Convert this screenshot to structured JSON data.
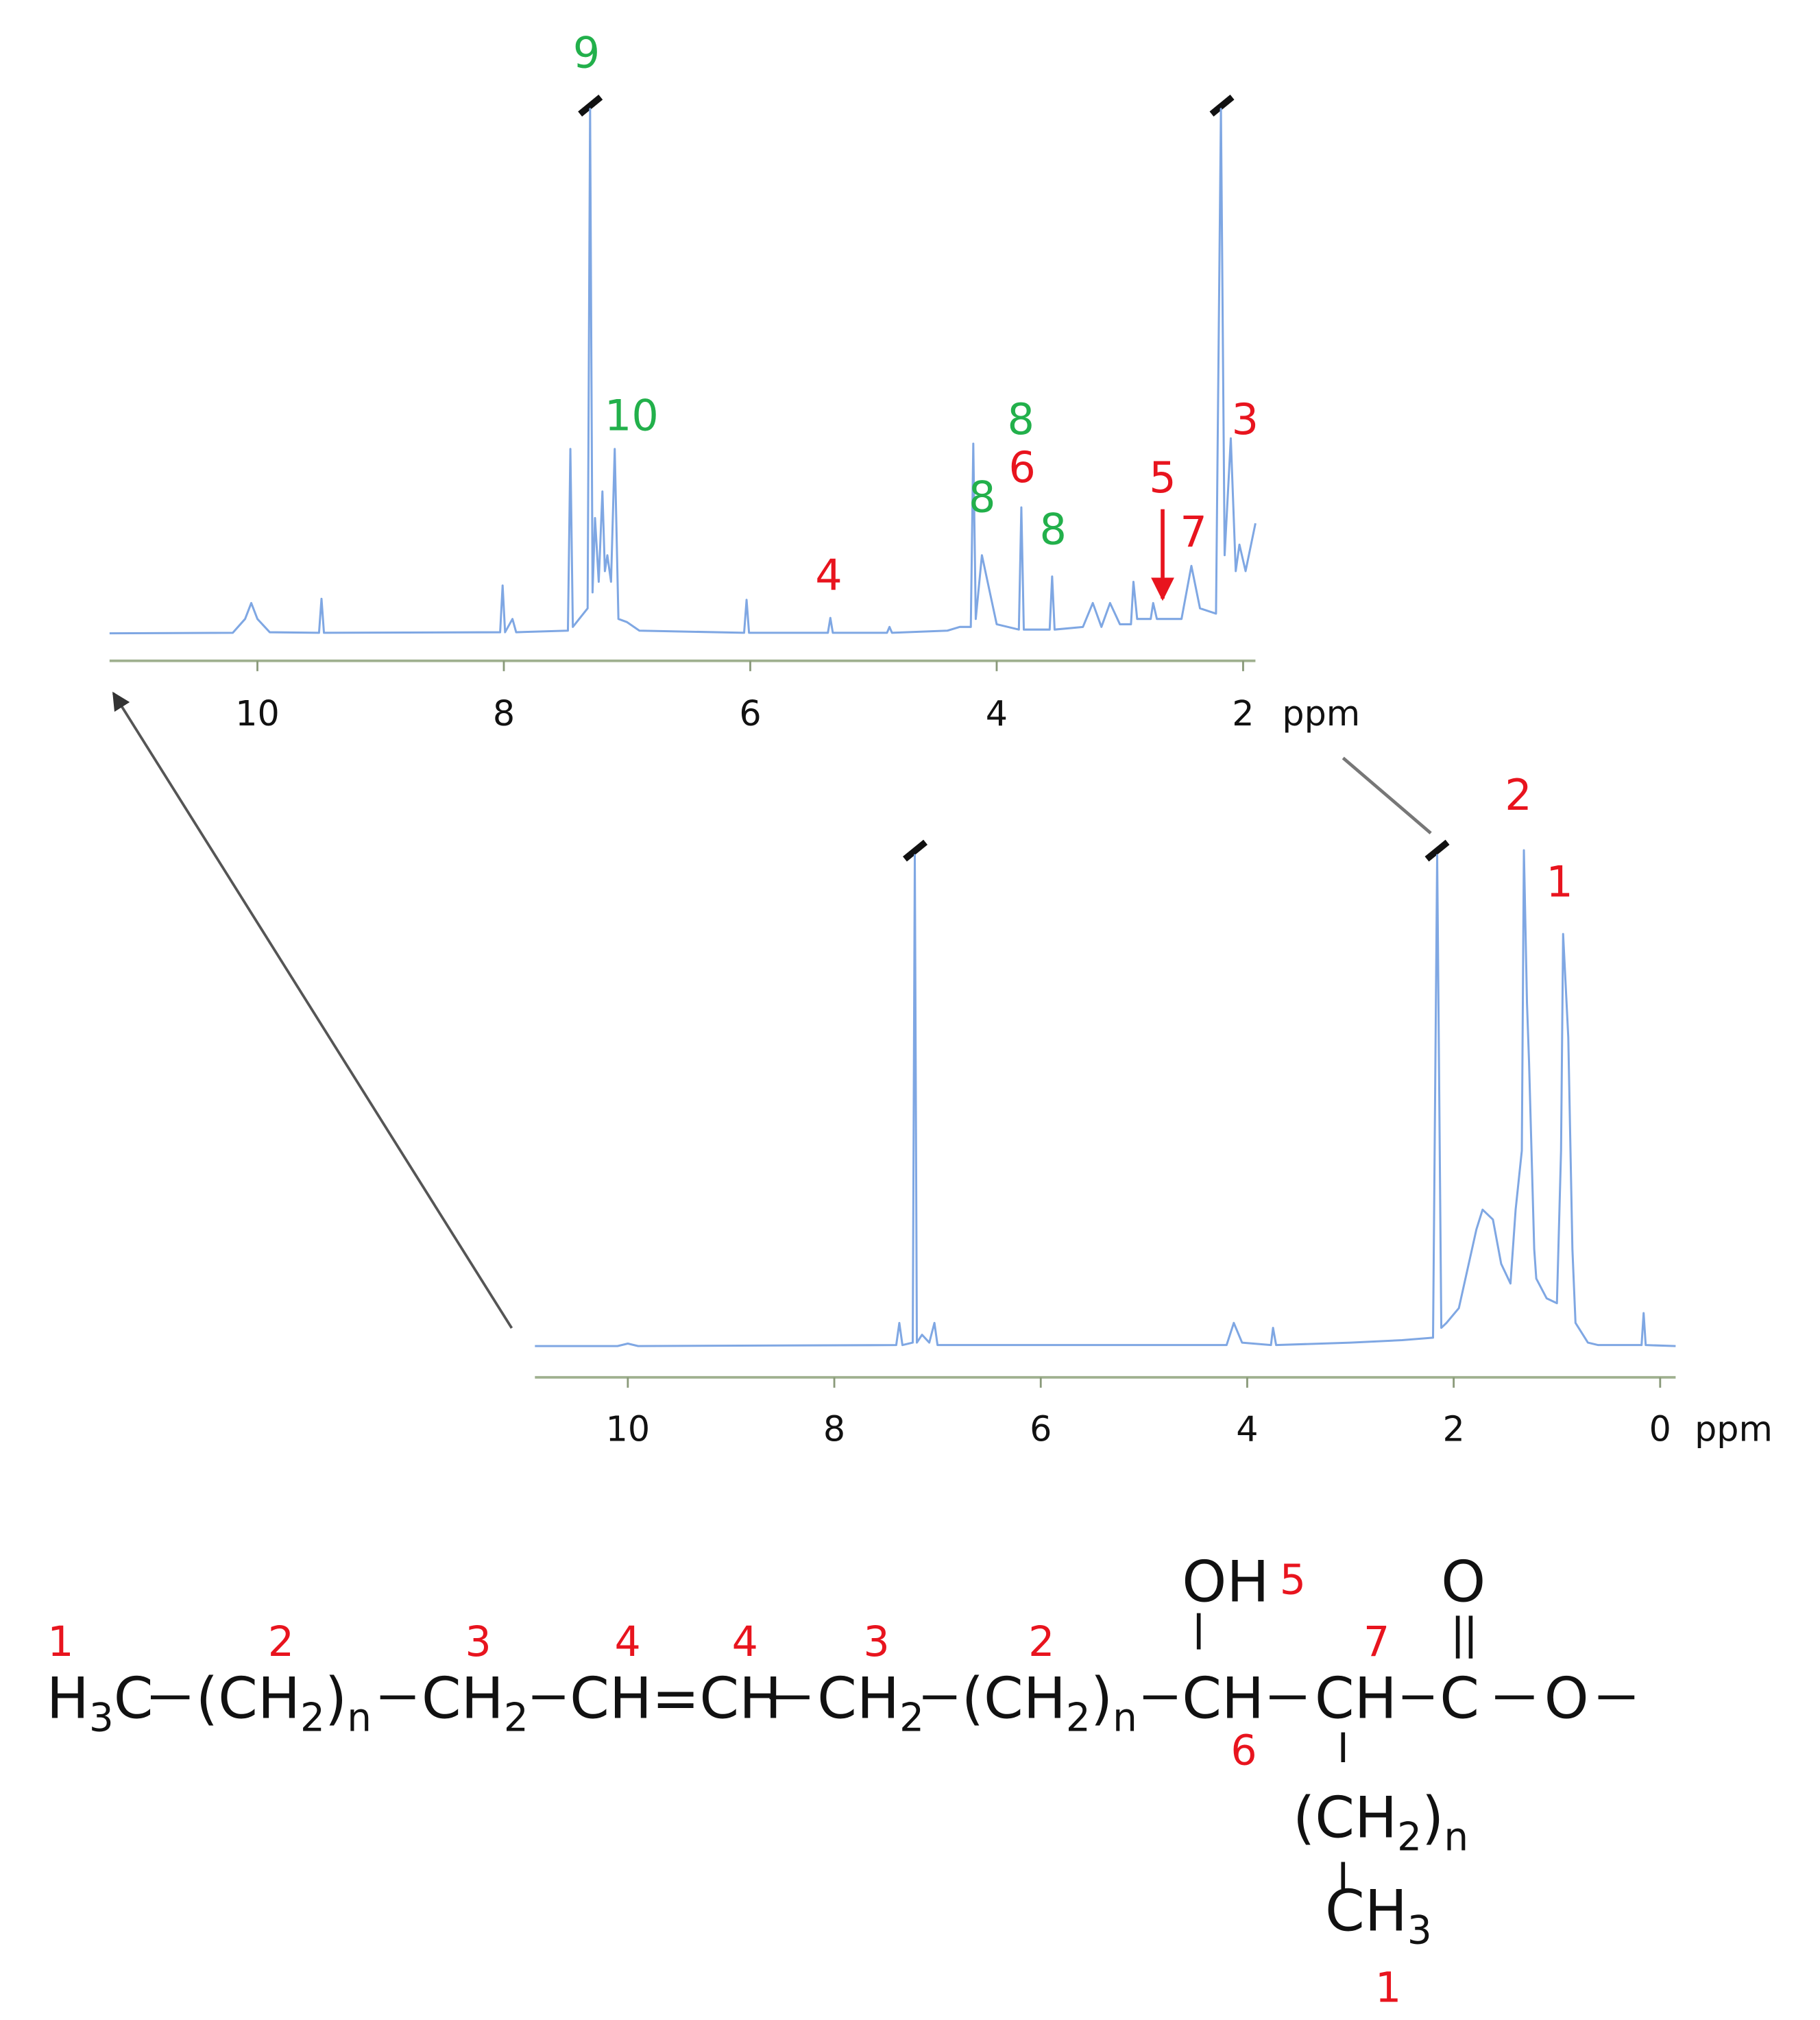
{
  "chart_data": [
    {
      "type": "line",
      "x_label": "ppm",
      "xlim": [
        11.2,
        1.9
      ],
      "xticks": [
        10,
        8,
        6,
        4,
        2
      ],
      "ylim": [
        0,
        100
      ],
      "color": "#7fa7e3",
      "series": [
        {
          "name": null,
          "color": "#7fa7e3",
          "x": [
            11.2,
            10.2,
            10.1,
            10.05,
            10.0,
            9.9,
            9.5,
            9.48,
            9.46,
            8.03,
            8.01,
            7.99,
            7.93,
            7.9,
            7.48,
            7.46,
            7.44,
            7.32,
            7.3,
            7.28,
            7.26,
            7.23,
            7.2,
            7.18,
            7.16,
            7.13,
            7.1,
            7.07,
            7.0,
            6.9,
            6.05,
            6.03,
            6.01,
            5.37,
            5.35,
            5.33,
            4.89,
            4.87,
            4.85,
            4.4,
            4.3,
            4.21,
            4.19,
            4.17,
            4.12,
            4.06,
            4.0,
            3.82,
            3.8,
            3.78,
            3.57,
            3.55,
            3.53,
            3.3,
            3.22,
            3.15,
            3.08,
            3.0,
            2.91,
            2.89,
            2.86,
            2.75,
            2.73,
            2.7,
            2.63,
            2.5,
            2.42,
            2.35,
            2.22,
            2.18,
            2.15,
            2.1,
            2.06,
            2.03,
            1.98,
            1.9
          ],
          "values": [
            0.3,
            0.4,
            3,
            6,
            3,
            0.5,
            0.4,
            6.8,
            0.4,
            0.5,
            9.3,
            0.5,
            3,
            0.5,
            0.8,
            35,
            1.5,
            5,
            99,
            8,
            22,
            10,
            27,
            12,
            15,
            10,
            35,
            3,
            2.4,
            0.8,
            0.4,
            6.6,
            0.4,
            0.4,
            3.2,
            0.4,
            0.4,
            1.5,
            0.4,
            0.8,
            1.5,
            1.5,
            36,
            3,
            15,
            8.5,
            2,
            1,
            24,
            1,
            1,
            11,
            1,
            1.5,
            6,
            1.5,
            6,
            2,
            2,
            10,
            3,
            3,
            6,
            3,
            3,
            3,
            13,
            5,
            4,
            99,
            15,
            37,
            12,
            17,
            12,
            21
          ]
        }
      ],
      "annotations": [
        {
          "text": "9",
          "color": "#22b04b"
        },
        {
          "text": "10",
          "color": "#22b04b"
        },
        {
          "text": "8",
          "color": "#22b04b"
        },
        {
          "text": "6",
          "color": "#e8141e"
        },
        {
          "text": "8",
          "color": "#22b04b"
        },
        {
          "text": "8",
          "color": "#22b04b"
        },
        {
          "text": "4",
          "color": "#e8141e"
        },
        {
          "text": "5",
          "color": "#e8141e"
        },
        {
          "text": "7",
          "color": "#e8141e"
        },
        {
          "text": "3",
          "color": "#e8141e"
        }
      ]
    },
    {
      "type": "line",
      "x_label": "ppm",
      "xlim": [
        10.9,
        -0.15
      ],
      "xticks": [
        10,
        8,
        6,
        4,
        2,
        0
      ],
      "ylim": [
        0,
        100
      ],
      "color": "#7fa7e3",
      "series": [
        {
          "name": null,
          "color": "#7fa7e3",
          "x": [
            10.9,
            10.1,
            10.0,
            9.9,
            7.4,
            7.37,
            7.34,
            7.24,
            7.22,
            7.2,
            7.15,
            7.08,
            7.03,
            7.0,
            4.2,
            4.13,
            4.05,
            3.77,
            3.75,
            3.72,
            3.0,
            2.5,
            2.2,
            2.16,
            2.12,
            2.07,
            1.95,
            1.78,
            1.72,
            1.62,
            1.54,
            1.45,
            1.4,
            1.34,
            1.32,
            1.29,
            1.27,
            1.22,
            1.2,
            1.1,
            1.0,
            0.96,
            0.94,
            0.89,
            0.85,
            0.82,
            0.7,
            0.6,
            0.18,
            0.16,
            0.14,
            -0.15
          ],
          "values": [
            0.3,
            0.3,
            0.8,
            0.3,
            0.5,
            5,
            0.5,
            1,
            100,
            1,
            2.6,
            1,
            5,
            0.5,
            0.5,
            5,
            1,
            0.5,
            4,
            0.5,
            1,
            1.5,
            2,
            100,
            4,
            5,
            8,
            24,
            28,
            26,
            17,
            13,
            28,
            40,
            101,
            70,
            58,
            20,
            14,
            10,
            9,
            40,
            84,
            63,
            20,
            5,
            1,
            0.5,
            0.5,
            7,
            0.5,
            0.3
          ]
        }
      ],
      "annotations": [
        {
          "text": "2",
          "color": "#e8141e"
        },
        {
          "text": "1",
          "color": "#e8141e"
        }
      ]
    }
  ],
  "structure": {
    "fragments": [
      {
        "parts": [
          {
            "text": "H"
          },
          {
            "sub": "3"
          },
          {
            "text": "C"
          }
        ]
      },
      {
        "parts": [
          {
            "text": "(CH"
          },
          {
            "sub": "2"
          },
          {
            "text": ")"
          },
          {
            "sub": "n"
          }
        ]
      },
      {
        "parts": [
          {
            "text": "CH"
          },
          {
            "sub": "2"
          }
        ]
      },
      {
        "parts": [
          {
            "text": "CH=CH"
          }
        ]
      },
      {
        "parts": [
          {
            "text": "CH"
          },
          {
            "sub": "2"
          }
        ]
      },
      {
        "parts": [
          {
            "text": "(CH"
          },
          {
            "sub": "2"
          },
          {
            "text": ")"
          },
          {
            "sub": "n"
          }
        ]
      },
      {
        "parts": [
          {
            "text": "CH"
          }
        ]
      },
      {
        "parts": [
          {
            "text": "CH"
          }
        ]
      },
      {
        "parts": [
          {
            "text": "C"
          }
        ]
      },
      {
        "parts": [
          {
            "text": "O"
          }
        ]
      },
      {
        "parts": [
          {
            "text": "OH"
          }
        ]
      },
      {
        "parts": [
          {
            "text": "O"
          }
        ]
      },
      {
        "parts": [
          {
            "text": "(CH"
          },
          {
            "sub": "2"
          },
          {
            "text": ")"
          },
          {
            "sub": "n"
          }
        ]
      },
      {
        "parts": [
          {
            "text": "CH"
          },
          {
            "sub": "3"
          }
        ]
      }
    ],
    "numbers": [
      "1",
      "2",
      "3",
      "4",
      "4",
      "3",
      "2",
      "5",
      "6",
      "7",
      "1"
    ]
  }
}
